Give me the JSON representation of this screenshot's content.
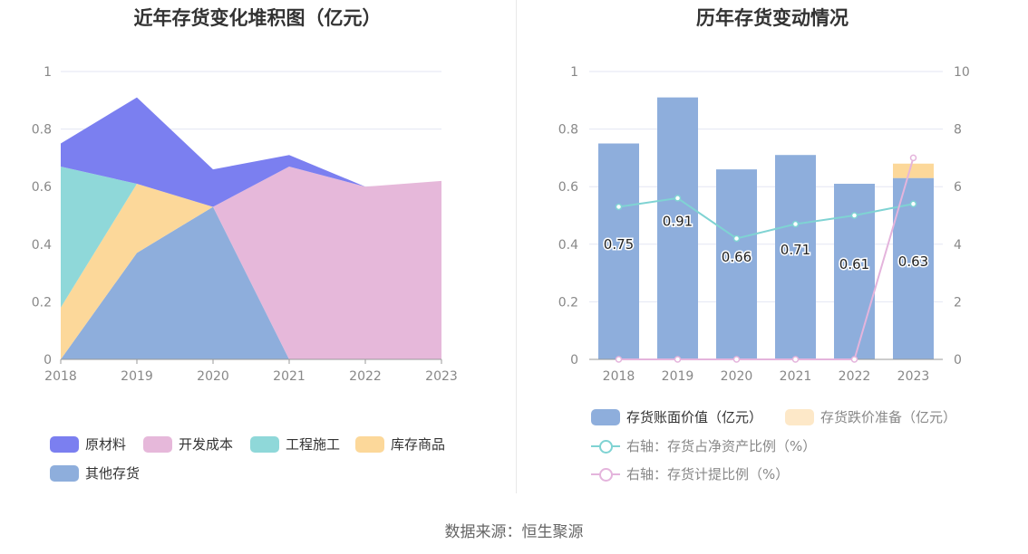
{
  "left_chart": {
    "title": "近年存货变化堆积图（亿元）",
    "chart_data": {
      "type": "area",
      "stacked": true,
      "categories": [
        "2018",
        "2019",
        "2020",
        "2021",
        "2022",
        "2023"
      ],
      "ylim": [
        0,
        1
      ],
      "yticks": [
        "0",
        "0.2",
        "0.4",
        "0.6",
        "0.8",
        "1"
      ],
      "series": [
        {
          "name": "其他存货",
          "color": "#8eaedc",
          "values": [
            0,
            0.37,
            0.53,
            0,
            0,
            0
          ]
        },
        {
          "name": "库存商品",
          "color": "#fcd89a",
          "values": [
            0.18,
            0.24,
            0,
            0,
            0,
            0
          ]
        },
        {
          "name": "工程施工",
          "color": "#8fd8d9",
          "values": [
            0.49,
            0,
            0,
            0,
            0,
            0
          ]
        },
        {
          "name": "开发成本",
          "color": "#e6b8da",
          "values": [
            0,
            0,
            0,
            0.67,
            0.6,
            0.62
          ]
        },
        {
          "name": "原材料",
          "color": "#7b7ff0",
          "values": [
            0.08,
            0.3,
            0.13,
            0.04,
            0,
            0
          ]
        }
      ]
    },
    "legend": [
      {
        "label": "原材料",
        "color": "#7b7ff0"
      },
      {
        "label": "开发成本",
        "color": "#e6b8da"
      },
      {
        "label": "工程施工",
        "color": "#8fd8d9"
      },
      {
        "label": "库存商品",
        "color": "#fcd89a"
      },
      {
        "label": "其他存货",
        "color": "#8eaedc"
      }
    ]
  },
  "right_chart": {
    "title": "历年存货变动情况",
    "chart_data": {
      "type": "bar",
      "categories": [
        "2018",
        "2019",
        "2020",
        "2021",
        "2022",
        "2023"
      ],
      "ylim": [
        0,
        1
      ],
      "yticks": [
        "0",
        "0.2",
        "0.4",
        "0.6",
        "0.8",
        "1"
      ],
      "y2lim": [
        0,
        10
      ],
      "y2ticks": [
        "0",
        "2",
        "4",
        "6",
        "8",
        "10"
      ],
      "bars": [
        {
          "name": "存货账面价值（亿元）",
          "color": "#8eaedc",
          "values": [
            0.75,
            0.91,
            0.66,
            0.71,
            0.61,
            0.63
          ],
          "labels": [
            "0.75",
            "0.91",
            "0.66",
            "0.71",
            "0.61",
            "0.63"
          ]
        },
        {
          "name": "存货跌价准备（亿元）",
          "color": "#fcd89a",
          "values": [
            0,
            0,
            0,
            0,
            0,
            0.05
          ]
        }
      ],
      "lines": [
        {
          "name": "右轴：存货占净资产比例（%）",
          "color": "#7fd3d3",
          "values": [
            5.3,
            5.6,
            4.2,
            4.7,
            5.0,
            5.4
          ]
        },
        {
          "name": "右轴：存货计提比例（%）",
          "color": "#e4b4dc",
          "values": [
            0,
            0,
            0,
            0,
            0,
            7.0
          ]
        }
      ]
    },
    "legend": [
      {
        "label": "存货账面价值（亿元）",
        "color": "#8eaedc",
        "kind": "swatch"
      },
      {
        "label": "存货跌价准备（亿元）",
        "color": "#fde8c8",
        "kind": "swatch",
        "muted": true
      },
      {
        "label": "右轴：存货占净资产比例（%）",
        "color": "#7fd3d3",
        "kind": "line",
        "muted": true
      },
      {
        "label": "右轴：存货计提比例（%）",
        "color": "#e4b4dc",
        "kind": "line",
        "muted": true
      }
    ]
  },
  "footer": {
    "source": "数据来源：恒生聚源"
  }
}
